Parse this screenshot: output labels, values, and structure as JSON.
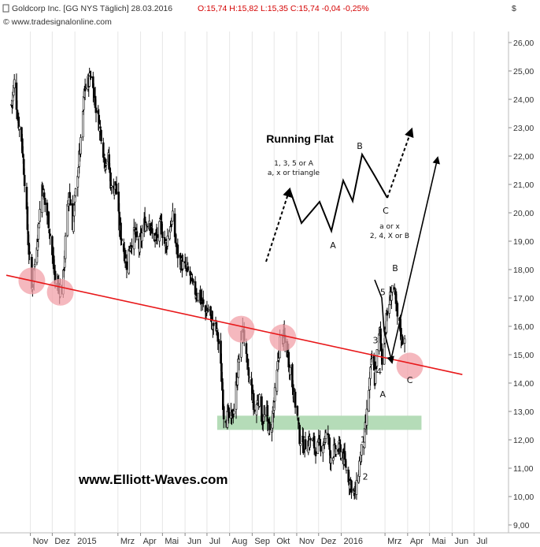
{
  "header": {
    "instrument": "Goldcorp Inc. [GG NYS  Täglich] 28.03.2016",
    "ohlc": "O:15,74 H:15,82 L:15,35 C:15,74 -0,04 -0,25%",
    "copyright": "© www.tradesignalonline.com",
    "currency": "$"
  },
  "colors": {
    "trendline": "#e8181a",
    "circle": "#f2a0a8",
    "support_zone": "#b5dcb8",
    "candle": "#000000"
  },
  "watermark": "www.Elliott-Waves.com",
  "chart_data": {
    "type": "candlestick",
    "title": "",
    "xlabel": "",
    "ylabel": "",
    "ylim": [
      9.0,
      26.0
    ],
    "y_ticks": [
      "26,00",
      "25,00",
      "24,00",
      "23,00",
      "22,00",
      "21,00",
      "20,00",
      "19,00",
      "18,00",
      "17,00",
      "16,00",
      "15,00",
      "14,00",
      "13,00",
      "12,00",
      "11,00",
      "10,00",
      "9,00"
    ],
    "x_ticks": [
      "Nov",
      "Dez",
      "2015",
      "Mrz",
      "Apr",
      "Mai",
      "Jun",
      "Jul",
      "Aug",
      "Sep",
      "Okt",
      "Nov",
      "Dez",
      "2016",
      "Mrz",
      "Apr",
      "Mai",
      "Jun",
      "Jul"
    ],
    "grid": "vertical",
    "price_path": [
      [
        "2014-10-06",
        23.8
      ],
      [
        "2014-10-10",
        24.6
      ],
      [
        "2014-10-15",
        23.3
      ],
      [
        "2014-10-20",
        22.6
      ],
      [
        "2014-10-24",
        21.2
      ],
      [
        "2014-10-29",
        19.0
      ],
      [
        "2014-11-03",
        17.3
      ],
      [
        "2014-11-07",
        18.2
      ],
      [
        "2014-11-12",
        19.5
      ],
      [
        "2014-11-17",
        21.0
      ],
      [
        "2014-11-21",
        20.3
      ],
      [
        "2014-11-26",
        19.7
      ],
      [
        "2014-12-01",
        18.5
      ],
      [
        "2014-12-05",
        17.6
      ],
      [
        "2014-12-10",
        17.4
      ],
      [
        "2014-12-15",
        17.3
      ],
      [
        "2014-12-19",
        19.0
      ],
      [
        "2014-12-24",
        20.8
      ],
      [
        "2014-12-29",
        19.6
      ],
      [
        "2015-01-05",
        21.5
      ],
      [
        "2015-01-09",
        22.4
      ],
      [
        "2015-01-14",
        24.3
      ],
      [
        "2015-01-19",
        24.6
      ],
      [
        "2015-01-23",
        24.9
      ],
      [
        "2015-01-28",
        24.0
      ],
      [
        "2015-02-02",
        23.3
      ],
      [
        "2015-02-06",
        22.8
      ],
      [
        "2015-02-11",
        21.8
      ],
      [
        "2015-02-16",
        21.9
      ],
      [
        "2015-02-20",
        20.8
      ],
      [
        "2015-02-26",
        21.0
      ],
      [
        "2015-03-03",
        19.5
      ],
      [
        "2015-03-09",
        18.7
      ],
      [
        "2015-03-13",
        18.2
      ],
      [
        "2015-03-18",
        18.9
      ],
      [
        "2015-03-24",
        19.3
      ],
      [
        "2015-03-30",
        18.8
      ],
      [
        "2015-04-06",
        19.6
      ],
      [
        "2015-04-13",
        19.8
      ],
      [
        "2015-04-17",
        19.2
      ],
      [
        "2015-04-23",
        19.1
      ],
      [
        "2015-04-29",
        19.6
      ],
      [
        "2015-05-05",
        18.8
      ],
      [
        "2015-05-11",
        19.5
      ],
      [
        "2015-05-15",
        19.8
      ],
      [
        "2015-05-21",
        18.6
      ],
      [
        "2015-05-27",
        18.2
      ],
      [
        "2015-06-02",
        18.0
      ],
      [
        "2015-06-08",
        17.8
      ],
      [
        "2015-06-12",
        17.3
      ],
      [
        "2015-06-17",
        17.2
      ],
      [
        "2015-06-23",
        16.9
      ],
      [
        "2015-06-29",
        16.5
      ],
      [
        "2015-07-03",
        16.6
      ],
      [
        "2015-07-08",
        16.1
      ],
      [
        "2015-07-13",
        16.0
      ],
      [
        "2015-07-17",
        15.4
      ],
      [
        "2015-07-21",
        14.2
      ],
      [
        "2015-07-24",
        12.9
      ],
      [
        "2015-07-29",
        12.8
      ],
      [
        "2015-08-03",
        12.7
      ],
      [
        "2015-08-07",
        13.1
      ],
      [
        "2015-08-12",
        14.4
      ],
      [
        "2015-08-17",
        15.6
      ],
      [
        "2015-08-20",
        15.9
      ],
      [
        "2015-08-25",
        14.5
      ],
      [
        "2015-08-31",
        13.8
      ],
      [
        "2015-09-04",
        13.0
      ],
      [
        "2015-09-10",
        13.5
      ],
      [
        "2015-09-15",
        12.7
      ],
      [
        "2015-09-21",
        12.9
      ],
      [
        "2015-09-25",
        12.2
      ],
      [
        "2015-09-30",
        13.1
      ],
      [
        "2015-10-05",
        14.3
      ],
      [
        "2015-10-09",
        15.5
      ],
      [
        "2015-10-14",
        15.6
      ],
      [
        "2015-10-19",
        15.1
      ],
      [
        "2015-10-23",
        14.5
      ],
      [
        "2015-10-28",
        13.6
      ],
      [
        "2015-11-02",
        12.8
      ],
      [
        "2015-11-05",
        12.1
      ],
      [
        "2015-11-10",
        11.8
      ],
      [
        "2015-11-16",
        11.9
      ],
      [
        "2015-11-20",
        12.0
      ],
      [
        "2015-11-27",
        11.7
      ],
      [
        "2015-12-03",
        11.8
      ],
      [
        "2015-12-09",
        12.0
      ],
      [
        "2015-12-14",
        12.2
      ],
      [
        "2015-12-17",
        11.4
      ],
      [
        "2015-12-22",
        11.6
      ],
      [
        "2015-12-30",
        11.7
      ],
      [
        "2016-01-06",
        11.2
      ],
      [
        "2016-01-12",
        10.6
      ],
      [
        "2016-01-19",
        10.1
      ],
      [
        "2016-01-22",
        10.3
      ],
      [
        "2016-01-27",
        11.4
      ],
      [
        "2016-02-01",
        11.9
      ],
      [
        "2016-02-04",
        12.6
      ],
      [
        "2016-02-08",
        13.8
      ],
      [
        "2016-02-12",
        14.9
      ],
      [
        "2016-02-16",
        14.1
      ],
      [
        "2016-02-19",
        15.0
      ],
      [
        "2016-02-23",
        15.8
      ],
      [
        "2016-02-26",
        14.8
      ],
      [
        "2016-03-01",
        15.9
      ],
      [
        "2016-03-04",
        16.4
      ],
      [
        "2016-03-08",
        17.0
      ],
      [
        "2016-03-11",
        17.4
      ],
      [
        "2016-03-15",
        16.9
      ],
      [
        "2016-03-18",
        16.3
      ],
      [
        "2016-03-22",
        15.9
      ],
      [
        "2016-03-24",
        15.5
      ],
      [
        "2016-03-28",
        15.7
      ]
    ],
    "trendline": {
      "from": [
        "2014-09-29",
        17.8
      ],
      "to": [
        "2016-06-15",
        14.3
      ]
    },
    "highlight_circles": [
      [
        "2014-11-03",
        17.6
      ],
      [
        "2014-12-12",
        17.2
      ],
      [
        "2015-08-17",
        15.9
      ],
      [
        "2015-10-13",
        15.6
      ],
      [
        "2016-04-04",
        14.6
      ]
    ],
    "support_zone": {
      "from": [
        "2015-07-15",
        12.35
      ],
      "to": [
        "2016-04-20",
        12.85
      ]
    },
    "wave_labels": [
      {
        "text": "1",
        "at": [
          "2016-01-31",
          11.9
        ]
      },
      {
        "text": "2",
        "at": [
          "2016-02-03",
          10.6
        ]
      },
      {
        "text": "3",
        "at": [
          "2016-02-17",
          15.4
        ]
      },
      {
        "text": "4",
        "at": [
          "2016-02-22",
          14.3
        ]
      },
      {
        "text": "A",
        "at": [
          "2016-02-27",
          13.5
        ]
      },
      {
        "text": "5",
        "at": [
          "2016-02-27",
          17.1
        ]
      },
      {
        "text": "B",
        "at": [
          "2016-03-15",
          17.95
        ]
      },
      {
        "text": "C",
        "at": [
          "2016-04-04",
          14.0
        ]
      }
    ],
    "schematic": {
      "title": "Running Flat",
      "label_left_1": "1, 3, 5 or A",
      "label_left_2": "a, x or triangle",
      "label_a": "A",
      "label_b": "B",
      "label_c": "C",
      "label_right_1": "a or x",
      "label_right_2": "2, 4, X or B"
    }
  }
}
